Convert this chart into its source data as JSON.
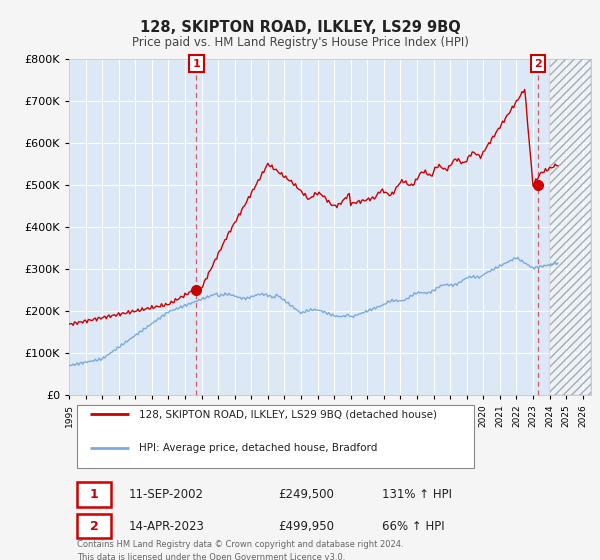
{
  "title": "128, SKIPTON ROAD, ILKLEY, LS29 9BQ",
  "subtitle": "Price paid vs. HM Land Registry's House Price Index (HPI)",
  "legend_line1": "128, SKIPTON ROAD, ILKLEY, LS29 9BQ (detached house)",
  "legend_line2": "HPI: Average price, detached house, Bradford",
  "transaction1_date": "11-SEP-2002",
  "transaction1_price": "£249,500",
  "transaction1_hpi": "131% ↑ HPI",
  "transaction2_date": "14-APR-2023",
  "transaction2_price": "£499,950",
  "transaction2_hpi": "66% ↑ HPI",
  "footer1": "Contains HM Land Registry data © Crown copyright and database right 2024.",
  "footer2": "This data is licensed under the Open Government Licence v3.0.",
  "property_color": "#cc0000",
  "hpi_color": "#7aaadd",
  "background_color": "#f5f5f5",
  "plot_bg_color": "#dce8f5",
  "ylim": [
    0,
    800000
  ],
  "xlim_start": 1995.0,
  "xlim_end": 2026.5,
  "hatch_start": 2024.0,
  "sale1_x": 2002.69,
  "sale1_y": 249500,
  "sale2_x": 2023.29,
  "sale2_y": 499950,
  "xtick_years": [
    1995,
    1996,
    1997,
    1998,
    1999,
    2000,
    2001,
    2002,
    2003,
    2004,
    2005,
    2006,
    2007,
    2008,
    2009,
    2010,
    2011,
    2012,
    2013,
    2014,
    2015,
    2016,
    2017,
    2018,
    2019,
    2020,
    2021,
    2022,
    2023,
    2024,
    2025,
    2026
  ]
}
